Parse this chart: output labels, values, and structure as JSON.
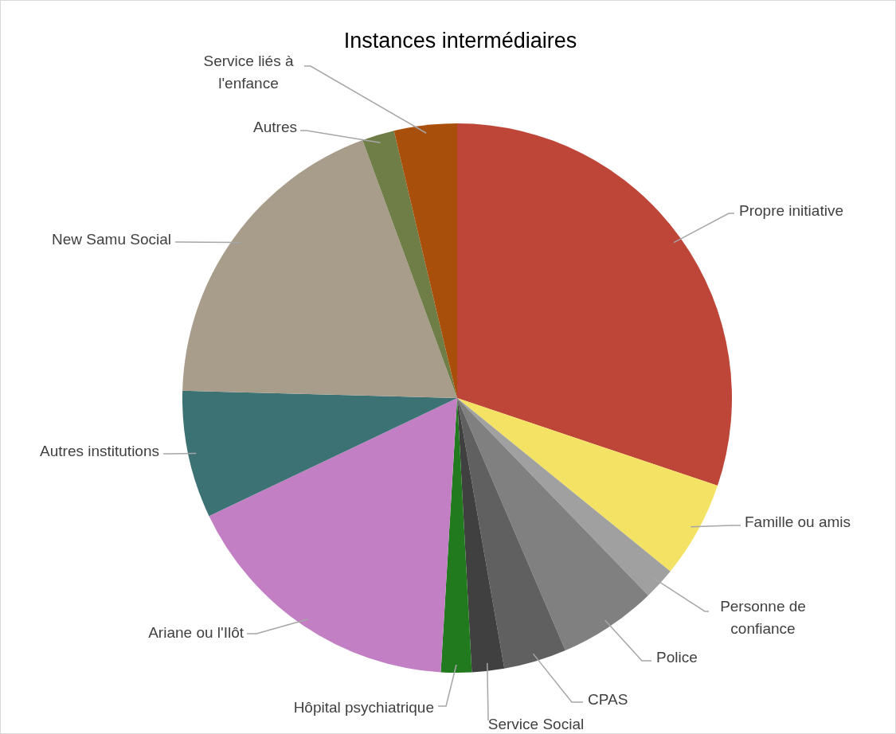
{
  "chart_data": {
    "type": "pie",
    "title": "Instances intermédiaires",
    "categories": [
      "Propre initiative",
      "Famille ou amis",
      "Personne de confiance",
      "Police",
      "CPAS",
      "Service Social",
      "Hôpital psychiatrique",
      "Ariane ou l'Ilôt",
      "Autres institutions",
      "New Samu Social",
      "Autres",
      "Service liés à l'enfance"
    ],
    "values": [
      30.2,
      5.7,
      1.9,
      5.8,
      3.7,
      1.9,
      1.8,
      17,
      7.5,
      19,
      1.9,
      3.7
    ],
    "colors": [
      "#be4638",
      "#f4e264",
      "#a0a0a0",
      "#808080",
      "#606060",
      "#404040",
      "#217a1e",
      "#c27fc4",
      "#3d7275",
      "#a89c8b",
      "#6f7d47",
      "#a84f0b"
    ],
    "legend": false
  }
}
